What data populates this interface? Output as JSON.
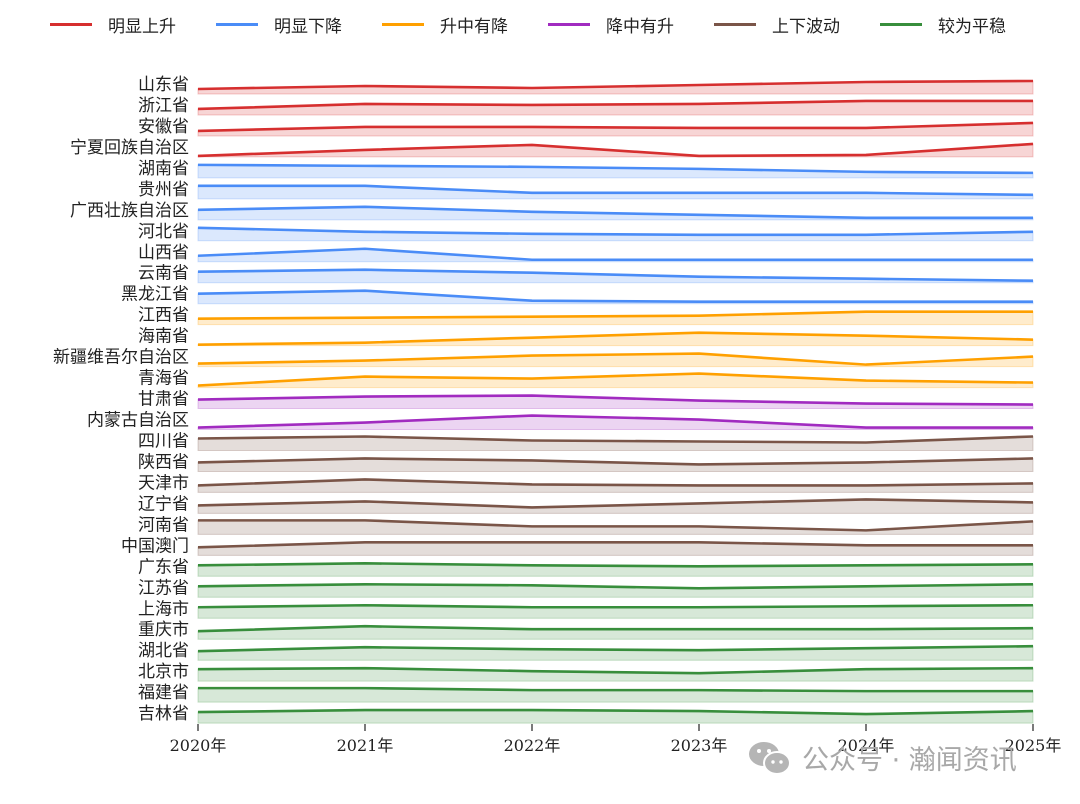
{
  "chart_data": {
    "type": "ridgeline-area",
    "title": "",
    "xlabel": "",
    "ylabel": "",
    "x": [
      "2020年",
      "2021年",
      "2022年",
      "2023年",
      "2024年",
      "2025年"
    ],
    "grid": false,
    "legend_placement": "top",
    "legend": [
      {
        "name": "明显上升",
        "color": "#d62f2f"
      },
      {
        "name": "明显下降",
        "color": "#4a8cf7"
      },
      {
        "name": "升中有降",
        "color": "#ffa000"
      },
      {
        "name": "降中有升",
        "color": "#a12bc0"
      },
      {
        "name": "上下波动",
        "color": "#7a5548"
      },
      {
        "name": "较为平稳",
        "color": "#388e3c"
      }
    ],
    "series": [
      {
        "name": "山东省",
        "group": 0,
        "values": [
          5,
          8,
          6,
          9,
          12,
          13
        ]
      },
      {
        "name": "浙江省",
        "group": 0,
        "values": [
          6,
          11,
          10,
          11,
          14,
          14
        ]
      },
      {
        "name": "安徽省",
        "group": 0,
        "values": [
          5,
          9,
          9,
          8,
          8,
          13
        ]
      },
      {
        "name": "宁夏回族自治区",
        "group": 0,
        "values": [
          1,
          7,
          12,
          1,
          2,
          13
        ]
      },
      {
        "name": "湖南省",
        "group": 1,
        "values": [
          13,
          12,
          11,
          9,
          6,
          5
        ]
      },
      {
        "name": "贵州省",
        "group": 1,
        "values": [
          13,
          13,
          6,
          6,
          6,
          4
        ]
      },
      {
        "name": "广西壮族自治区",
        "group": 1,
        "values": [
          10,
          13,
          8,
          5,
          2,
          2
        ]
      },
      {
        "name": "河北省",
        "group": 1,
        "values": [
          13,
          9,
          7,
          6,
          6,
          9
        ]
      },
      {
        "name": "山西省",
        "group": 1,
        "values": [
          6,
          13,
          2,
          2,
          2,
          2
        ]
      },
      {
        "name": "云南省",
        "group": 1,
        "values": [
          11,
          13,
          10,
          6,
          4,
          2
        ]
      },
      {
        "name": "黑龙江省",
        "group": 1,
        "values": [
          10,
          13,
          3,
          2,
          2,
          2
        ]
      },
      {
        "name": "江西省",
        "group": 2,
        "values": [
          6,
          7,
          8,
          9,
          13,
          13
        ]
      },
      {
        "name": "海南省",
        "group": 2,
        "values": [
          1,
          3,
          8,
          13,
          10,
          6
        ]
      },
      {
        "name": "新疆维吾尔自治区",
        "group": 2,
        "values": [
          3,
          6,
          11,
          13,
          2,
          10
        ]
      },
      {
        "name": "青海省",
        "group": 2,
        "values": [
          2,
          11,
          9,
          14,
          7,
          5
        ]
      },
      {
        "name": "甘肃省",
        "group": 3,
        "values": [
          9,
          12,
          13,
          8,
          5,
          4
        ]
      },
      {
        "name": "内蒙古自治区",
        "group": 3,
        "values": [
          2,
          7,
          14,
          10,
          2,
          2
        ]
      },
      {
        "name": "四川省",
        "group": 4,
        "values": [
          12,
          14,
          10,
          9,
          8,
          14
        ]
      },
      {
        "name": "陕西省",
        "group": 4,
        "values": [
          9,
          13,
          11,
          7,
          9,
          13
        ]
      },
      {
        "name": "天津市",
        "group": 4,
        "values": [
          7,
          13,
          8,
          7,
          7,
          9
        ]
      },
      {
        "name": "辽宁省",
        "group": 4,
        "values": [
          8,
          12,
          6,
          10,
          14,
          11
        ]
      },
      {
        "name": "河南省",
        "group": 4,
        "values": [
          14,
          14,
          8,
          8,
          4,
          13
        ]
      },
      {
        "name": "中国澳门",
        "group": 4,
        "values": [
          8,
          13,
          13,
          13,
          10,
          10
        ]
      },
      {
        "name": "广东省",
        "group": 5,
        "values": [
          11,
          13,
          11,
          10,
          11,
          12
        ]
      },
      {
        "name": "江苏省",
        "group": 5,
        "values": [
          11,
          13,
          12,
          9,
          11,
          13
        ]
      },
      {
        "name": "上海市",
        "group": 5,
        "values": [
          11,
          13,
          11,
          11,
          12,
          13
        ]
      },
      {
        "name": "重庆市",
        "group": 5,
        "values": [
          8,
          13,
          10,
          10,
          10,
          11
        ]
      },
      {
        "name": "湖北省",
        "group": 5,
        "values": [
          9,
          13,
          11,
          10,
          12,
          14
        ]
      },
      {
        "name": "北京市",
        "group": 5,
        "values": [
          12,
          13,
          10,
          8,
          12,
          13
        ]
      },
      {
        "name": "福建省",
        "group": 5,
        "values": [
          14,
          14,
          12,
          12,
          11,
          11
        ]
      },
      {
        "name": "吉林省",
        "group": 5,
        "values": [
          11,
          13,
          13,
          12,
          9,
          12
        ]
      }
    ]
  },
  "watermark": {
    "text": "公众号 · 瀚闻资讯",
    "icon": "wechat-icon"
  }
}
